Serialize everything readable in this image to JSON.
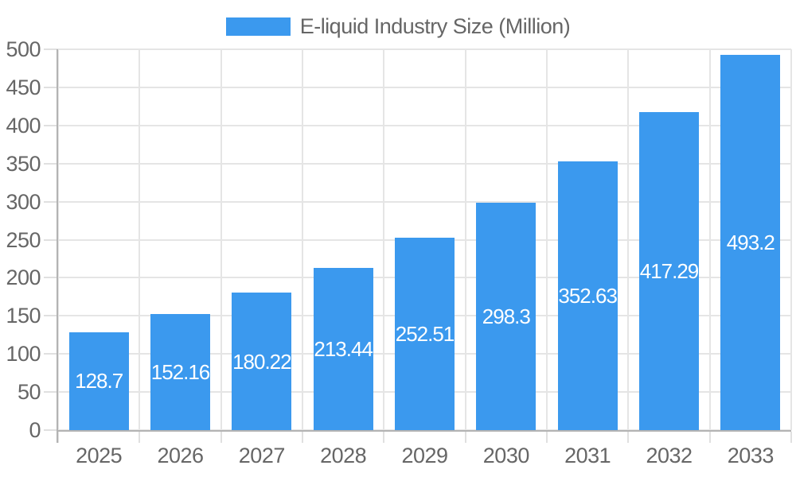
{
  "chart_data": {
    "type": "bar",
    "title": "",
    "legend_position": "top",
    "grid": true,
    "categories": [
      "2025",
      "2026",
      "2027",
      "2028",
      "2029",
      "2030",
      "2031",
      "2032",
      "2033"
    ],
    "series": [
      {
        "name": "E-liquid Industry Size (Million)",
        "values": [
          128.7,
          152.16,
          180.22,
          213.44,
          252.51,
          298.3,
          352.63,
          417.29,
          493.2
        ]
      }
    ],
    "values": [
      128.7,
      152.16,
      180.22,
      213.44,
      252.51,
      298.3,
      352.63,
      417.29,
      493.2
    ],
    "value_labels": [
      "128.7",
      "152.16",
      "180.22",
      "213.44",
      "252.51",
      "298.3",
      "352.63",
      "417.29",
      "493.2"
    ],
    "xlabel": "",
    "ylabel": "",
    "ylim": [
      0,
      500
    ],
    "ytick_step": 50,
    "yticks": [
      0,
      50,
      100,
      150,
      200,
      250,
      300,
      350,
      400,
      450,
      500
    ],
    "colors": {
      "bar": "#3b99ee",
      "grid": "#e5e5e5",
      "tick": "#e0e0e0",
      "axis": "#b3b3b3",
      "text": "#666666",
      "value_label_text": "#ffffff",
      "background": "#ffffff"
    }
  }
}
